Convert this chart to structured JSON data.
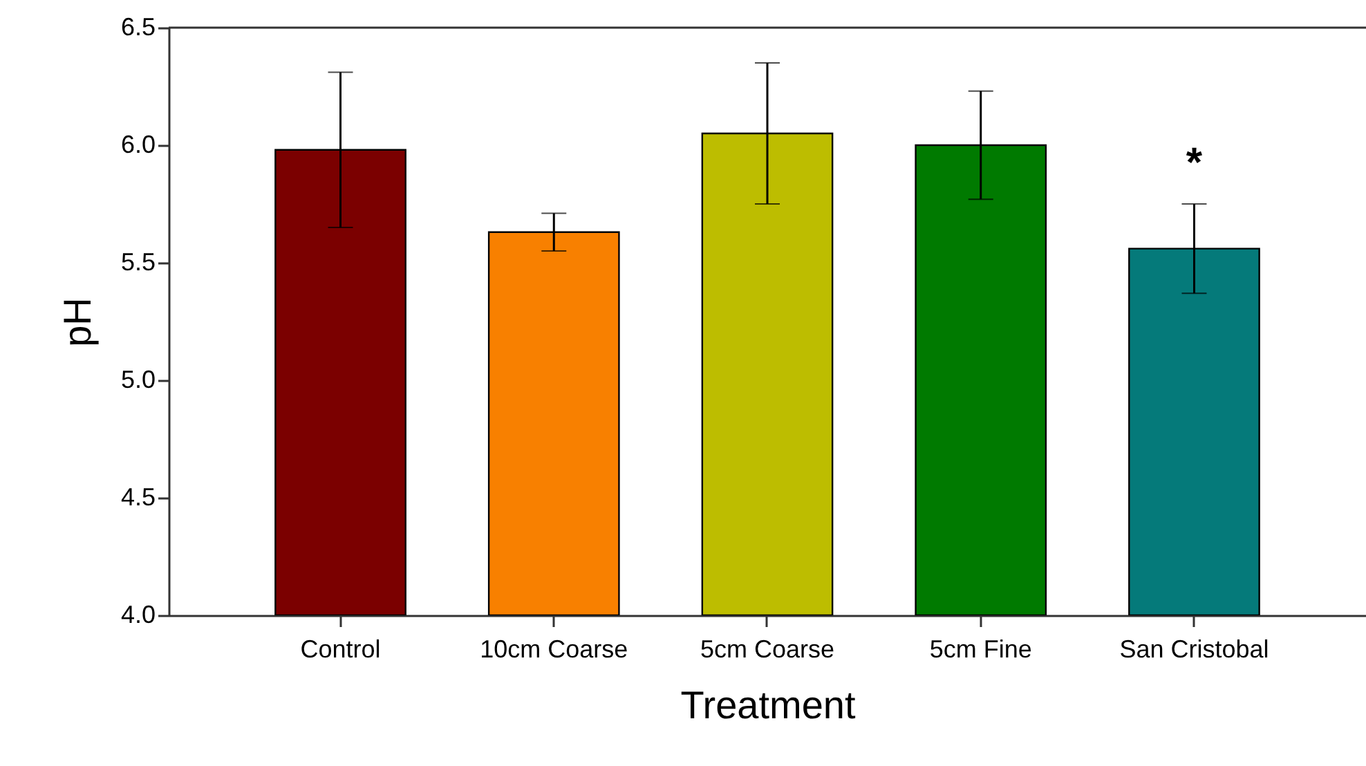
{
  "chart_data": {
    "type": "bar",
    "xlabel": "Treatment",
    "ylabel": "pH",
    "categories": [
      "Control",
      "10cm Coarse",
      "5cm Coarse",
      "5cm Fine",
      "San Cristobal"
    ],
    "values": [
      5.98,
      5.63,
      6.05,
      6.0,
      5.56
    ],
    "errors": [
      0.33,
      0.08,
      0.3,
      0.23,
      0.19
    ],
    "colors": [
      "#7b0000",
      "#f88000",
      "#bdbd00",
      "#007a00",
      "#057a7a"
    ],
    "ylim": [
      4.0,
      6.5
    ],
    "yticks": [
      {
        "value": 4.0,
        "label": "4.0"
      },
      4.5,
      {
        "value": 5.0,
        "label": "5.0"
      },
      5.5,
      {
        "value": 6.0,
        "label": "6.0"
      },
      6.5
    ],
    "annotations": [
      {
        "text": "*",
        "x": "San Cristobal",
        "y": 5.75
      }
    ],
    "grid": false
  }
}
